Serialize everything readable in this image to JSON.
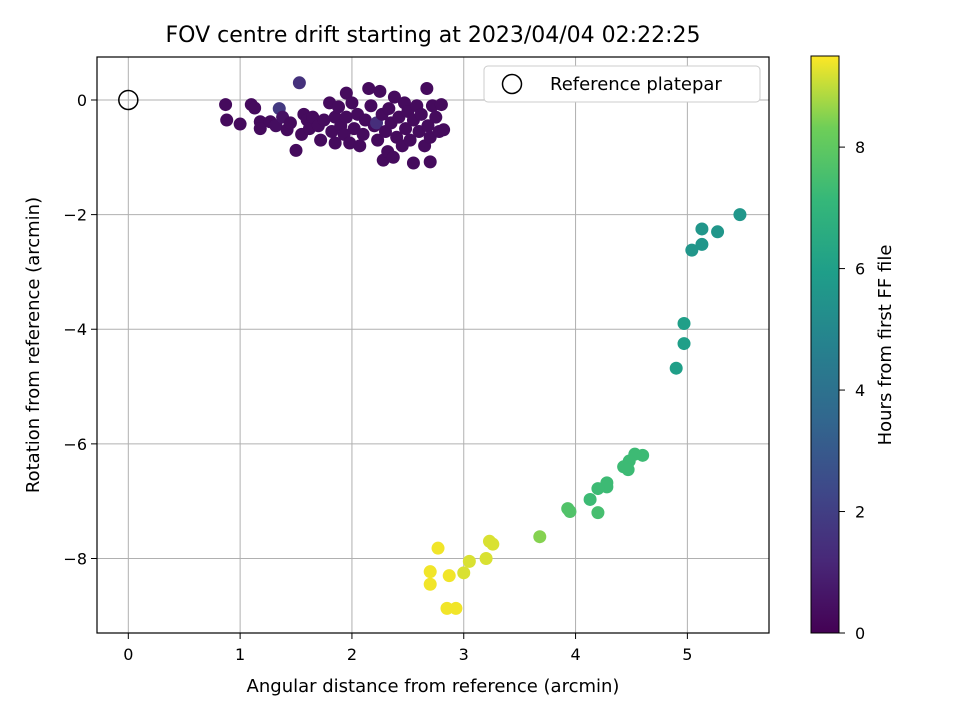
{
  "chart_data": {
    "type": "scatter",
    "title": "FOV centre drift starting at 2023/04/04 02:22:25",
    "xlabel": "Angular distance from reference (arcmin)",
    "ylabel": "Rotation from reference (arcmin)",
    "xlim": [
      -0.28,
      5.73
    ],
    "ylim": [
      -9.3,
      0.75
    ],
    "x_ticks": [
      0,
      1,
      2,
      3,
      4,
      5
    ],
    "y_ticks": [
      0,
      -2,
      -4,
      -6,
      -8
    ],
    "grid": true,
    "legend": {
      "placement": "top-right",
      "entries": [
        "Reference platepar"
      ]
    },
    "reference_point": {
      "x": 0.0,
      "y": 0.0,
      "label": "Reference platepar"
    },
    "colorbar": {
      "label": "Hours from first FF file",
      "range": [
        0,
        9.5
      ],
      "ticks": [
        0,
        2,
        4,
        6,
        8
      ],
      "colormap": "viridis"
    },
    "points": [
      {
        "x": 0.87,
        "y": -0.08,
        "h": 0.3
      },
      {
        "x": 0.88,
        "y": -0.35,
        "h": 0.3
      },
      {
        "x": 1.0,
        "y": -0.42,
        "h": 0.3
      },
      {
        "x": 1.1,
        "y": -0.08,
        "h": 0.3
      },
      {
        "x": 1.13,
        "y": -0.14,
        "h": 0.3
      },
      {
        "x": 1.18,
        "y": -0.38,
        "h": 0.3
      },
      {
        "x": 1.18,
        "y": -0.5,
        "h": 0.3
      },
      {
        "x": 1.27,
        "y": -0.38,
        "h": 0.3
      },
      {
        "x": 1.32,
        "y": -0.45,
        "h": 0.4
      },
      {
        "x": 1.35,
        "y": -0.15,
        "h": 1.8
      },
      {
        "x": 1.38,
        "y": -0.3,
        "h": 0.5
      },
      {
        "x": 1.42,
        "y": -0.52,
        "h": 0.3
      },
      {
        "x": 1.45,
        "y": -0.4,
        "h": 0.3
      },
      {
        "x": 1.5,
        "y": -0.88,
        "h": 0.3
      },
      {
        "x": 1.53,
        "y": 0.3,
        "h": 1.5
      },
      {
        "x": 1.55,
        "y": -0.6,
        "h": 0.3
      },
      {
        "x": 1.57,
        "y": -0.25,
        "h": 0.3
      },
      {
        "x": 1.6,
        "y": -0.35,
        "h": 0.3
      },
      {
        "x": 1.62,
        "y": -0.5,
        "h": 0.3
      },
      {
        "x": 1.65,
        "y": -0.3,
        "h": 0.3
      },
      {
        "x": 1.7,
        "y": -0.45,
        "h": 0.3
      },
      {
        "x": 1.72,
        "y": -0.7,
        "h": 0.3
      },
      {
        "x": 1.75,
        "y": -0.35,
        "h": 0.3
      },
      {
        "x": 1.8,
        "y": -0.05,
        "h": 0.3
      },
      {
        "x": 1.82,
        "y": -0.55,
        "h": 0.3
      },
      {
        "x": 1.85,
        "y": -0.3,
        "h": 0.3
      },
      {
        "x": 1.85,
        "y": -0.75,
        "h": 0.3
      },
      {
        "x": 1.88,
        "y": -0.12,
        "h": 0.3
      },
      {
        "x": 1.9,
        "y": -0.45,
        "h": 0.3
      },
      {
        "x": 1.93,
        "y": -0.6,
        "h": 0.3
      },
      {
        "x": 1.95,
        "y": 0.12,
        "h": 0.3
      },
      {
        "x": 1.95,
        "y": -0.3,
        "h": 0.3
      },
      {
        "x": 1.98,
        "y": -0.75,
        "h": 0.3
      },
      {
        "x": 2.0,
        "y": -0.05,
        "h": 0.3
      },
      {
        "x": 2.02,
        "y": -0.5,
        "h": 0.3
      },
      {
        "x": 2.05,
        "y": -0.25,
        "h": 0.3
      },
      {
        "x": 2.07,
        "y": -0.8,
        "h": 0.3
      },
      {
        "x": 2.1,
        "y": -0.6,
        "h": 0.3
      },
      {
        "x": 2.12,
        "y": -0.35,
        "h": 0.3
      },
      {
        "x": 2.15,
        "y": 0.2,
        "h": 0.3
      },
      {
        "x": 2.17,
        "y": -0.1,
        "h": 0.3
      },
      {
        "x": 2.2,
        "y": -0.45,
        "h": 0.3
      },
      {
        "x": 2.22,
        "y": -0.4,
        "h": 1.4
      },
      {
        "x": 2.23,
        "y": -0.7,
        "h": 0.3
      },
      {
        "x": 2.25,
        "y": 0.15,
        "h": 0.3
      },
      {
        "x": 2.27,
        "y": -0.25,
        "h": 0.3
      },
      {
        "x": 2.28,
        "y": -1.05,
        "h": 0.3
      },
      {
        "x": 2.3,
        "y": -0.55,
        "h": 0.3
      },
      {
        "x": 2.32,
        "y": -0.9,
        "h": 0.3
      },
      {
        "x": 2.33,
        "y": -0.15,
        "h": 0.3
      },
      {
        "x": 2.35,
        "y": -0.4,
        "h": 0.3
      },
      {
        "x": 2.37,
        "y": -1.0,
        "h": 0.3
      },
      {
        "x": 2.38,
        "y": 0.05,
        "h": 0.3
      },
      {
        "x": 2.4,
        "y": -0.65,
        "h": 0.3
      },
      {
        "x": 2.42,
        "y": -0.3,
        "h": 0.3
      },
      {
        "x": 2.45,
        "y": -0.8,
        "h": 0.3
      },
      {
        "x": 2.47,
        "y": -0.05,
        "h": 0.3
      },
      {
        "x": 2.48,
        "y": -0.5,
        "h": 0.3
      },
      {
        "x": 2.5,
        "y": -0.2,
        "h": 0.3
      },
      {
        "x": 2.52,
        "y": -0.7,
        "h": 0.3
      },
      {
        "x": 2.55,
        "y": -1.1,
        "h": 0.3
      },
      {
        "x": 2.55,
        "y": -0.35,
        "h": 0.3
      },
      {
        "x": 2.58,
        "y": -0.1,
        "h": 0.3
      },
      {
        "x": 2.6,
        "y": -0.55,
        "h": 0.3
      },
      {
        "x": 2.62,
        "y": -0.25,
        "h": 0.3
      },
      {
        "x": 2.65,
        "y": -0.8,
        "h": 0.3
      },
      {
        "x": 2.67,
        "y": 0.2,
        "h": 0.3
      },
      {
        "x": 2.68,
        "y": -0.45,
        "h": 0.3
      },
      {
        "x": 2.7,
        "y": -1.08,
        "h": 0.3
      },
      {
        "x": 2.7,
        "y": -0.65,
        "h": 0.3
      },
      {
        "x": 2.72,
        "y": -0.1,
        "h": 0.3
      },
      {
        "x": 2.75,
        "y": -0.3,
        "h": 0.3
      },
      {
        "x": 2.78,
        "y": -0.55,
        "h": 0.3
      },
      {
        "x": 2.8,
        "y": -0.08,
        "h": 0.3
      },
      {
        "x": 2.82,
        "y": -0.52,
        "h": 0.3
      },
      {
        "x": 5.47,
        "y": -2.0,
        "h": 5.6
      },
      {
        "x": 5.13,
        "y": -2.25,
        "h": 5.6
      },
      {
        "x": 5.27,
        "y": -2.3,
        "h": 5.6
      },
      {
        "x": 5.13,
        "y": -2.52,
        "h": 5.6
      },
      {
        "x": 5.04,
        "y": -2.62,
        "h": 5.6
      },
      {
        "x": 4.97,
        "y": -3.9,
        "h": 6.0
      },
      {
        "x": 4.97,
        "y": -4.25,
        "h": 6.0
      },
      {
        "x": 4.9,
        "y": -4.68,
        "h": 6.0
      },
      {
        "x": 4.6,
        "y": -6.2,
        "h": 7.3
      },
      {
        "x": 4.53,
        "y": -6.18,
        "h": 7.3
      },
      {
        "x": 4.48,
        "y": -6.3,
        "h": 7.3
      },
      {
        "x": 4.43,
        "y": -6.4,
        "h": 7.3
      },
      {
        "x": 4.47,
        "y": -6.45,
        "h": 7.3
      },
      {
        "x": 4.28,
        "y": -6.68,
        "h": 7.3
      },
      {
        "x": 4.28,
        "y": -6.75,
        "h": 7.3
      },
      {
        "x": 4.2,
        "y": -6.78,
        "h": 7.3
      },
      {
        "x": 4.13,
        "y": -6.97,
        "h": 7.3
      },
      {
        "x": 4.2,
        "y": -7.2,
        "h": 7.5
      },
      {
        "x": 3.93,
        "y": -7.13,
        "h": 7.7
      },
      {
        "x": 3.95,
        "y": -7.18,
        "h": 7.7
      },
      {
        "x": 3.68,
        "y": -7.62,
        "h": 8.5
      },
      {
        "x": 3.23,
        "y": -7.7,
        "h": 9.2
      },
      {
        "x": 3.26,
        "y": -7.75,
        "h": 9.2
      },
      {
        "x": 3.2,
        "y": -8.0,
        "h": 9.2
      },
      {
        "x": 3.05,
        "y": -8.05,
        "h": 9.2
      },
      {
        "x": 3.0,
        "y": -8.25,
        "h": 9.2
      },
      {
        "x": 2.77,
        "y": -7.82,
        "h": 9.4
      },
      {
        "x": 2.7,
        "y": -8.23,
        "h": 9.4
      },
      {
        "x": 2.7,
        "y": -8.45,
        "h": 9.4
      },
      {
        "x": 2.87,
        "y": -8.3,
        "h": 9.4
      },
      {
        "x": 2.85,
        "y": -8.87,
        "h": 9.4
      },
      {
        "x": 2.93,
        "y": -8.87,
        "h": 9.4
      }
    ]
  }
}
